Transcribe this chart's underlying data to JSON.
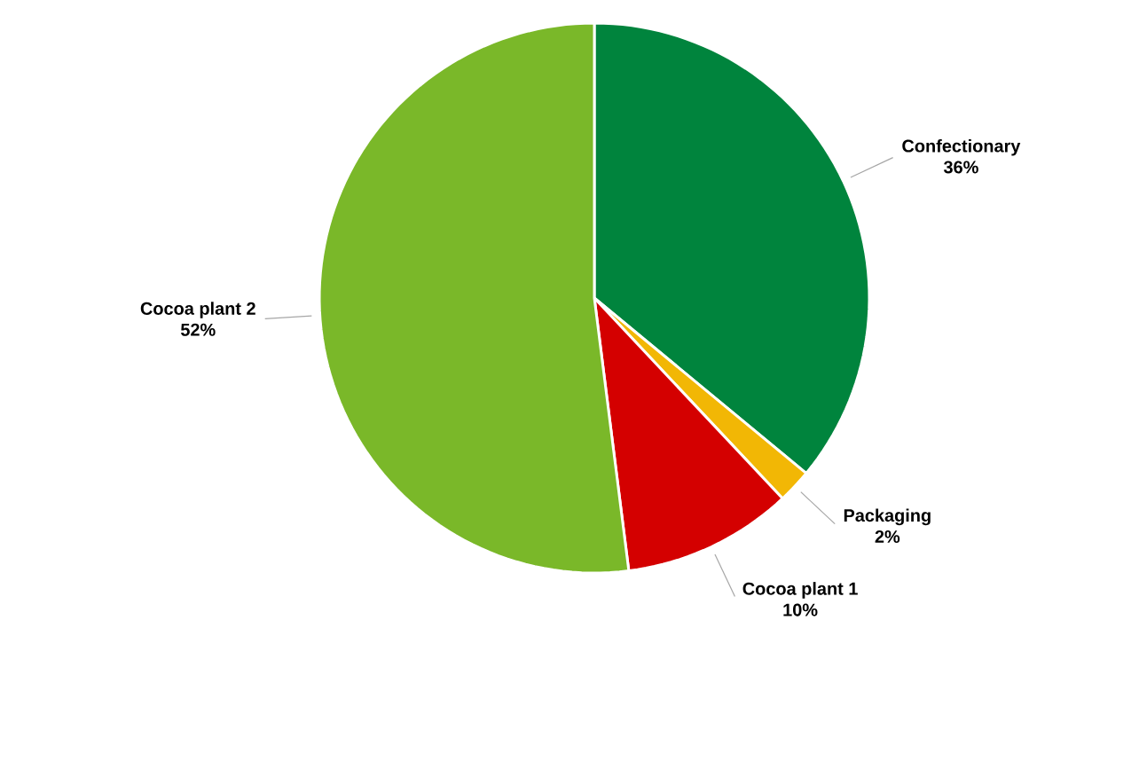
{
  "chart_data": {
    "type": "pie",
    "categories": [
      "Confectionary",
      "Packaging",
      "Cocoa plant 1",
      "Cocoa plant 2"
    ],
    "values": [
      36,
      2,
      10,
      52
    ],
    "value_labels": [
      "36%",
      "2%",
      "10%",
      "52%"
    ],
    "colors": [
      "#00843d",
      "#f2b705",
      "#d40000",
      "#7ab829"
    ]
  }
}
